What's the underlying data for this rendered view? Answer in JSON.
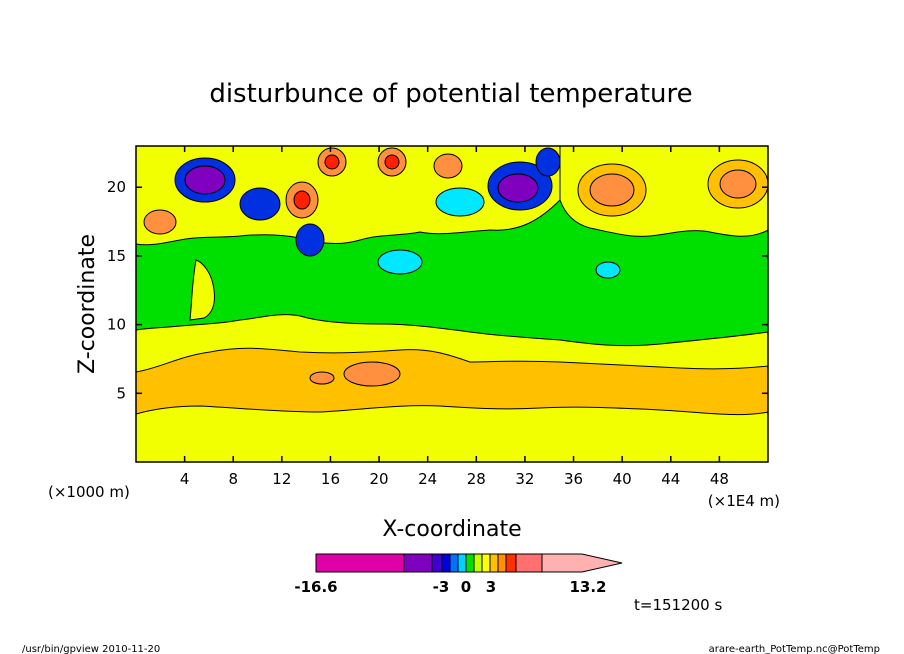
{
  "chart_data": {
    "type": "heatmap",
    "title": "disturbunce of potential temperature",
    "xlabel": "X-coordinate",
    "ylabel": "Z-coordinate",
    "x_unit_left": "(×1000 m)",
    "x_unit_right": "(×1E4 m)",
    "x_ticks": [
      4,
      8,
      12,
      16,
      20,
      24,
      28,
      32,
      36,
      40,
      44,
      48
    ],
    "y_ticks": [
      5,
      10,
      15,
      20
    ],
    "xlim": [
      0,
      52
    ],
    "ylim": [
      0,
      23
    ],
    "time_label": "t=151200 s",
    "colorbar": {
      "labels": [
        "-16.6",
        "-3",
        "0",
        "3",
        "13.2"
      ],
      "colors": [
        "#e000a8",
        "#8000c0",
        "#4000d0",
        "#0000e0",
        "#0070ff",
        "#00d0ff",
        "#00e000",
        "#c8ff00",
        "#ffff00",
        "#ffc000",
        "#ff9000",
        "#ff3000",
        "#ff7070",
        "#ffb0b0"
      ]
    },
    "levels": [
      "#f2ff00",
      "#ffc000",
      "#ff9040",
      "#00e000",
      "#00e8ff",
      "#0030e0",
      "#8000c0",
      "#ff2000"
    ]
  },
  "footer": {
    "left": "/usr/bin/gpview  2010-11-20",
    "right": "arare-earth_PotTemp.nc@PotTemp"
  }
}
